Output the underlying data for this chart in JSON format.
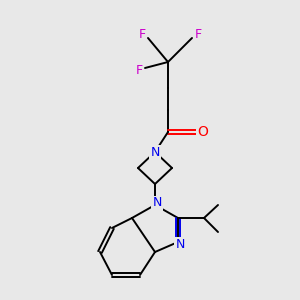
{
  "background_color": "#e8e8e8",
  "atom_colors": {
    "C": "#000000",
    "N": "#0000ee",
    "O": "#ff0000",
    "F": "#cc00cc"
  },
  "figsize": [
    3.0,
    3.0
  ],
  "dpi": 100,
  "lw": 1.4
}
